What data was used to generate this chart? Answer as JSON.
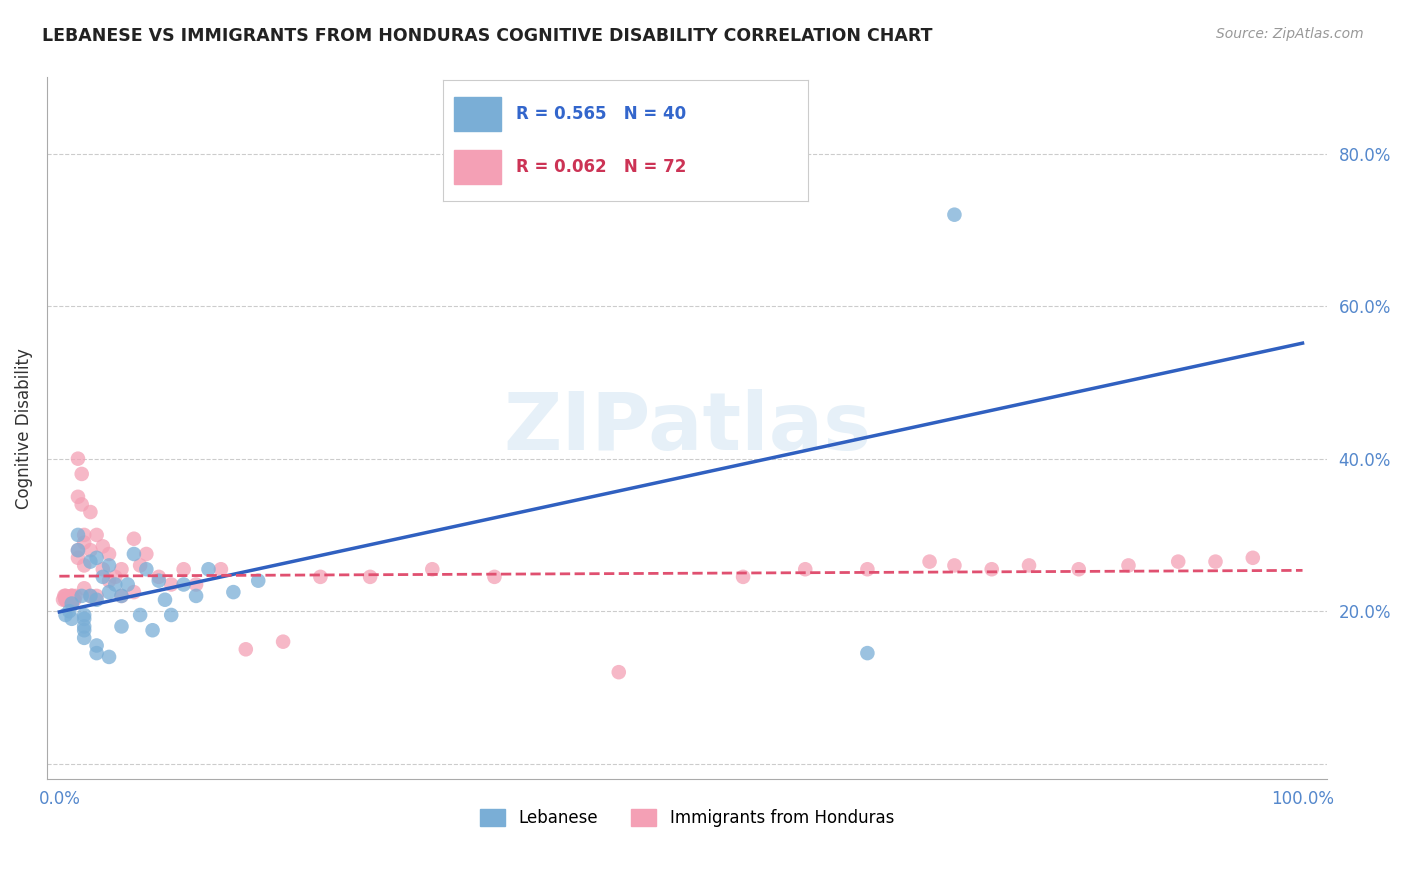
{
  "title": "LEBANESE VS IMMIGRANTS FROM HONDURAS COGNITIVE DISABILITY CORRELATION CHART",
  "source": "Source: ZipAtlas.com",
  "ylabel": "Cognitive Disability",
  "background_color": "#ffffff",
  "watermark_zip": "ZIP",
  "watermark_atlas": "atlas",
  "blue_color": "#7aaed6",
  "pink_color": "#f4a0b5",
  "blue_line_color": "#3060c0",
  "pink_line_color": "#e05070",
  "legend_blue_R": "R = 0.565",
  "legend_blue_N": "N = 40",
  "legend_pink_R": "R = 0.062",
  "legend_pink_N": "N = 72",
  "legend_label_blue": "Lebanese",
  "legend_label_pink": "Immigrants from Honduras",
  "blue_x": [
    0.005,
    0.008,
    0.01,
    0.01,
    0.015,
    0.015,
    0.018,
    0.02,
    0.02,
    0.02,
    0.02,
    0.02,
    0.025,
    0.025,
    0.03,
    0.03,
    0.03,
    0.03,
    0.035,
    0.04,
    0.04,
    0.04,
    0.045,
    0.05,
    0.05,
    0.055,
    0.06,
    0.065,
    0.07,
    0.075,
    0.08,
    0.085,
    0.09,
    0.1,
    0.11,
    0.12,
    0.14,
    0.16,
    0.65,
    0.72
  ],
  "blue_y": [
    0.195,
    0.2,
    0.19,
    0.21,
    0.3,
    0.28,
    0.22,
    0.18,
    0.195,
    0.19,
    0.175,
    0.165,
    0.265,
    0.22,
    0.215,
    0.27,
    0.145,
    0.155,
    0.245,
    0.225,
    0.26,
    0.14,
    0.235,
    0.22,
    0.18,
    0.235,
    0.275,
    0.195,
    0.255,
    0.175,
    0.24,
    0.215,
    0.195,
    0.235,
    0.22,
    0.255,
    0.225,
    0.24,
    0.145,
    0.72
  ],
  "pink_x": [
    0.003,
    0.004,
    0.005,
    0.005,
    0.005,
    0.005,
    0.006,
    0.007,
    0.008,
    0.008,
    0.009,
    0.009,
    0.01,
    0.01,
    0.01,
    0.01,
    0.01,
    0.01,
    0.01,
    0.012,
    0.012,
    0.013,
    0.015,
    0.015,
    0.015,
    0.015,
    0.018,
    0.018,
    0.02,
    0.02,
    0.02,
    0.02,
    0.025,
    0.025,
    0.025,
    0.03,
    0.03,
    0.035,
    0.035,
    0.04,
    0.04,
    0.045,
    0.05,
    0.05,
    0.06,
    0.06,
    0.065,
    0.07,
    0.08,
    0.09,
    0.1,
    0.11,
    0.13,
    0.15,
    0.18,
    0.21,
    0.25,
    0.3,
    0.35,
    0.45,
    0.55,
    0.6,
    0.65,
    0.7,
    0.72,
    0.75,
    0.78,
    0.82,
    0.86,
    0.9,
    0.93,
    0.96
  ],
  "pink_y": [
    0.215,
    0.22,
    0.215,
    0.215,
    0.22,
    0.22,
    0.215,
    0.215,
    0.215,
    0.215,
    0.215,
    0.215,
    0.22,
    0.215,
    0.215,
    0.215,
    0.215,
    0.22,
    0.22,
    0.215,
    0.215,
    0.22,
    0.4,
    0.35,
    0.28,
    0.27,
    0.38,
    0.34,
    0.29,
    0.3,
    0.26,
    0.23,
    0.33,
    0.28,
    0.22,
    0.3,
    0.22,
    0.285,
    0.255,
    0.275,
    0.24,
    0.245,
    0.255,
    0.22,
    0.295,
    0.225,
    0.26,
    0.275,
    0.245,
    0.235,
    0.255,
    0.235,
    0.255,
    0.15,
    0.16,
    0.245,
    0.245,
    0.255,
    0.245,
    0.12,
    0.245,
    0.255,
    0.255,
    0.265,
    0.26,
    0.255,
    0.26,
    0.255,
    0.26,
    0.265,
    0.265,
    0.27
  ]
}
